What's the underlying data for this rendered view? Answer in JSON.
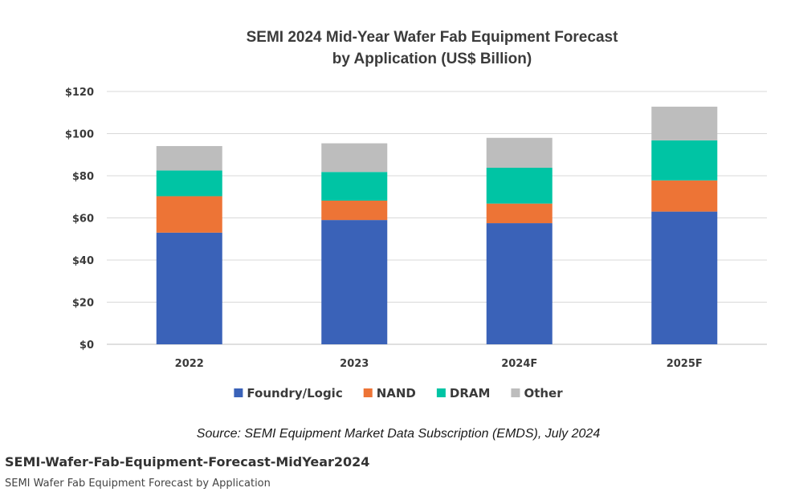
{
  "chart_data": {
    "type": "bar",
    "stacked": true,
    "title": "SEMI 2024 Mid-Year Wafer Fab Equipment Forecast",
    "title_line2": "by Application (US$ Billion)",
    "categories": [
      "2022",
      "2023",
      "2024F",
      "2025F"
    ],
    "series": [
      {
        "name": "Foundry/Logic",
        "color": "#3a62b8",
        "values": [
          53,
          59,
          57.5,
          63
        ]
      },
      {
        "name": "NAND",
        "color": "#ed7436",
        "values": [
          17.3,
          9.2,
          9.3,
          14.8
        ]
      },
      {
        "name": "DRAM",
        "color": "#00c4a4",
        "values": [
          12.2,
          13.6,
          17,
          19
        ]
      },
      {
        "name": "Other",
        "color": "#bdbdbd",
        "values": [
          11.6,
          13.6,
          14.2,
          16
        ]
      }
    ],
    "y_ticks": [
      "$0",
      "$20",
      "$40",
      "$60",
      "$80",
      "$100",
      "$120"
    ],
    "ylim": [
      0,
      120
    ],
    "grid": true,
    "legend_position": "bottom",
    "source": "Source: SEMI Equipment Market Data Subscription (EMDS), July 2024"
  },
  "caption": {
    "title": "SEMI-Wafer-Fab-Equipment-Forecast-MidYear2024",
    "subtitle": "SEMI Wafer Fab Equipment Forecast by Application"
  }
}
